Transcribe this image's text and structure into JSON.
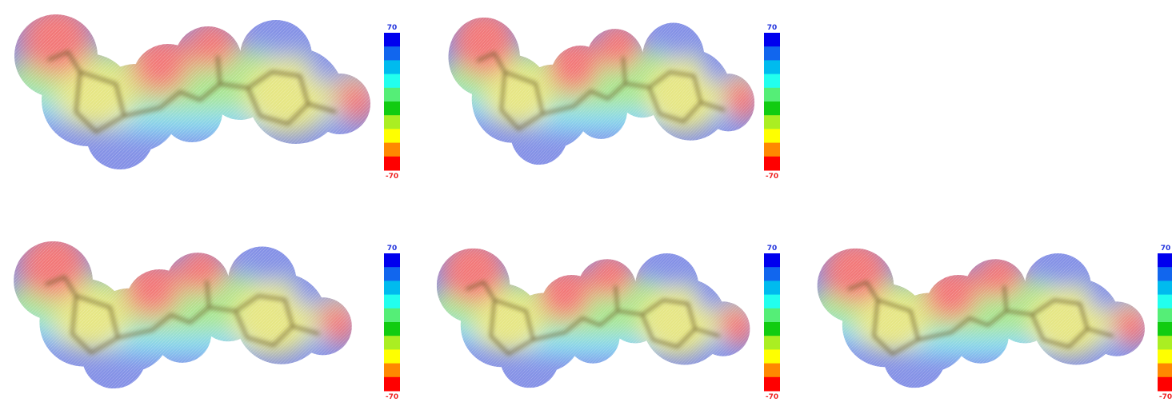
{
  "panels": [
    {
      "scale_max": "70",
      "scale_min": "-70"
    },
    {
      "scale_max": "70",
      "scale_min": "-70"
    },
    {
      "scale_max": "70",
      "scale_min": "-70"
    },
    {
      "scale_max": "70",
      "scale_min": "-70"
    },
    {
      "scale_max": "70",
      "scale_min": "-70"
    }
  ]
}
